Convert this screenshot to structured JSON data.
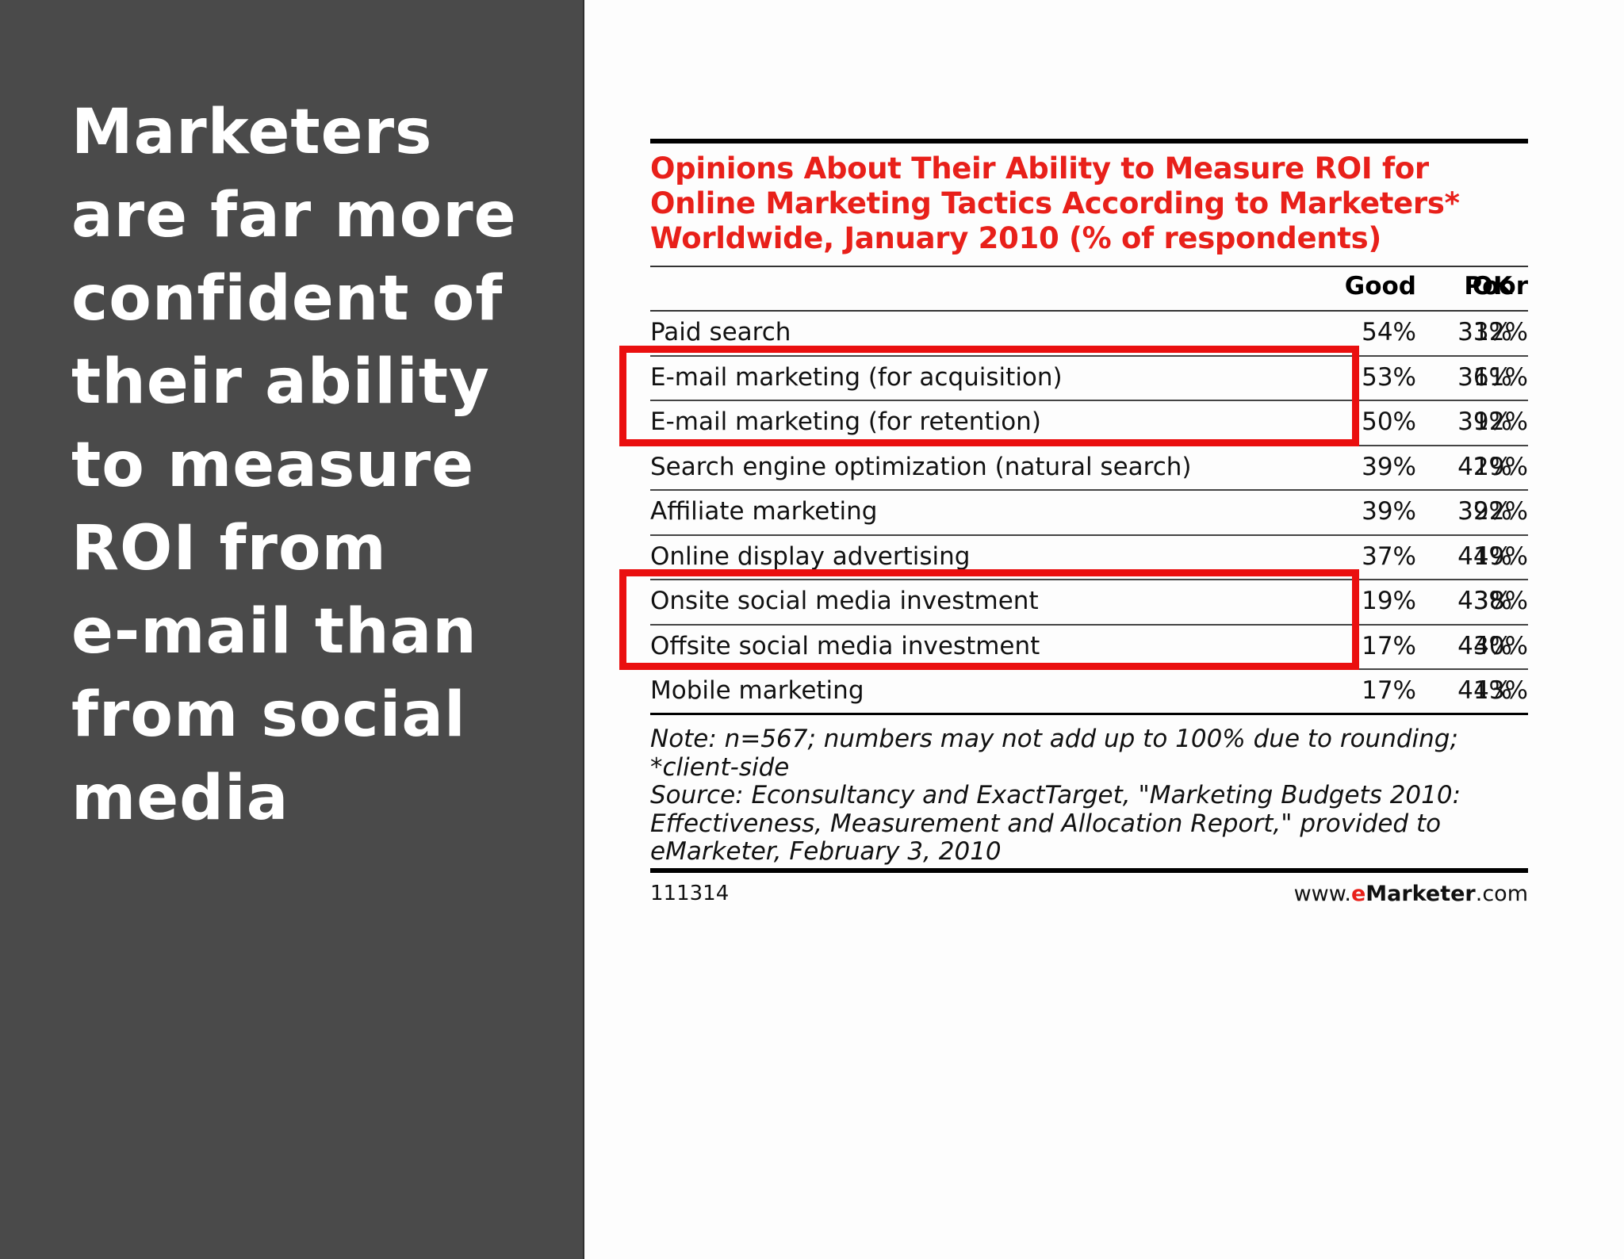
{
  "headline_lines": [
    "Marketers",
    "are far more",
    "confident of",
    "their ability",
    "to measure",
    "ROI from",
    "e-mail than",
    "from social",
    "media"
  ],
  "accent_color": "#e8201a",
  "highlight_color": "#ea0f0f",
  "chart_data": {
    "type": "table",
    "title_lines": [
      "Opinions About Their Ability to Measure ROI for",
      "Online Marketing Tactics According to Marketers*",
      "Worldwide, January 2010 (% of respondents)"
    ],
    "columns": [
      "Good",
      "OK",
      "Poor"
    ],
    "rows": [
      {
        "label": "Paid search",
        "values": [
          "54%",
          "33%",
          "12%"
        ]
      },
      {
        "label": "E-mail marketing (for acquisition)",
        "values": [
          "53%",
          "36%",
          "11%"
        ]
      },
      {
        "label": "E-mail marketing (for retention)",
        "values": [
          "50%",
          "39%",
          "12%"
        ]
      },
      {
        "label": "Search engine optimization (natural search)",
        "values": [
          "39%",
          "42%",
          "19%"
        ]
      },
      {
        "label": "Affiliate marketing",
        "values": [
          "39%",
          "39%",
          "22%"
        ]
      },
      {
        "label": "Online display advertising",
        "values": [
          "37%",
          "44%",
          "19%"
        ]
      },
      {
        "label": "Onsite social media investment",
        "values": [
          "19%",
          "43%",
          "38%"
        ]
      },
      {
        "label": "Offsite social media investment",
        "values": [
          "17%",
          "43%",
          "40%"
        ]
      },
      {
        "label": "Mobile marketing",
        "values": [
          "17%",
          "41%",
          "43%"
        ]
      }
    ],
    "highlighted_rows": [
      "E-mail marketing (for acquisition)",
      "E-mail marketing (for retention)",
      "Onsite social media investment",
      "Offsite social media investment"
    ],
    "notes": [
      "Note: n=567; numbers may not add up to 100% due to rounding;",
      "*client-side",
      "Source: Econsultancy and ExactTarget, \"Marketing Budgets 2010:",
      "Effectiveness, Measurement and Allocation Report,\" provided to",
      "eMarketer, February 3, 2010"
    ],
    "chart_id": "111314",
    "site": {
      "prefix": "www.",
      "brand_e": "e",
      "brand_rest": "Marketer",
      "suffix": ".com"
    }
  }
}
